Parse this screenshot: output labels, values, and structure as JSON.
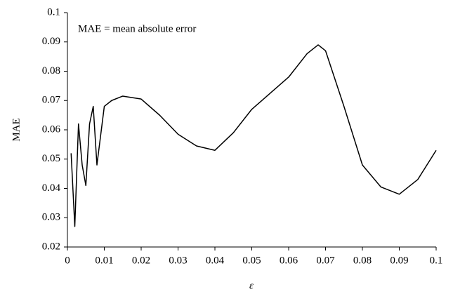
{
  "chart_data": {
    "type": "line",
    "annotation": "MAE = mean absolute error",
    "x_label": "ε",
    "y_label": "MAE",
    "xlim": [
      0,
      0.1
    ],
    "ylim": [
      0.02,
      0.1
    ],
    "xticks": [
      0,
      0.01,
      0.02,
      0.03,
      0.04,
      0.05,
      0.06,
      0.07,
      0.08,
      0.09,
      0.1
    ],
    "yticks": [
      0.02,
      0.03,
      0.04,
      0.05,
      0.06,
      0.07,
      0.08,
      0.09,
      0.1
    ],
    "x": [
      0.001,
      0.002,
      0.003,
      0.004,
      0.005,
      0.006,
      0.007,
      0.008,
      0.009,
      0.01,
      0.012,
      0.015,
      0.02,
      0.025,
      0.03,
      0.035,
      0.04,
      0.045,
      0.05,
      0.055,
      0.06,
      0.065,
      0.068,
      0.07,
      0.075,
      0.08,
      0.085,
      0.09,
      0.095,
      0.1
    ],
    "series": [
      {
        "color": "#000000",
        "values": [
          0.052,
          0.027,
          0.062,
          0.048,
          0.041,
          0.062,
          0.068,
          0.048,
          0.058,
          0.068,
          0.07,
          0.0715,
          0.0705,
          0.065,
          0.0585,
          0.0545,
          0.053,
          0.059,
          0.067,
          0.0725,
          0.078,
          0.086,
          0.089,
          0.087,
          0.068,
          0.048,
          0.0405,
          0.038,
          0.043,
          0.053
        ]
      }
    ]
  }
}
